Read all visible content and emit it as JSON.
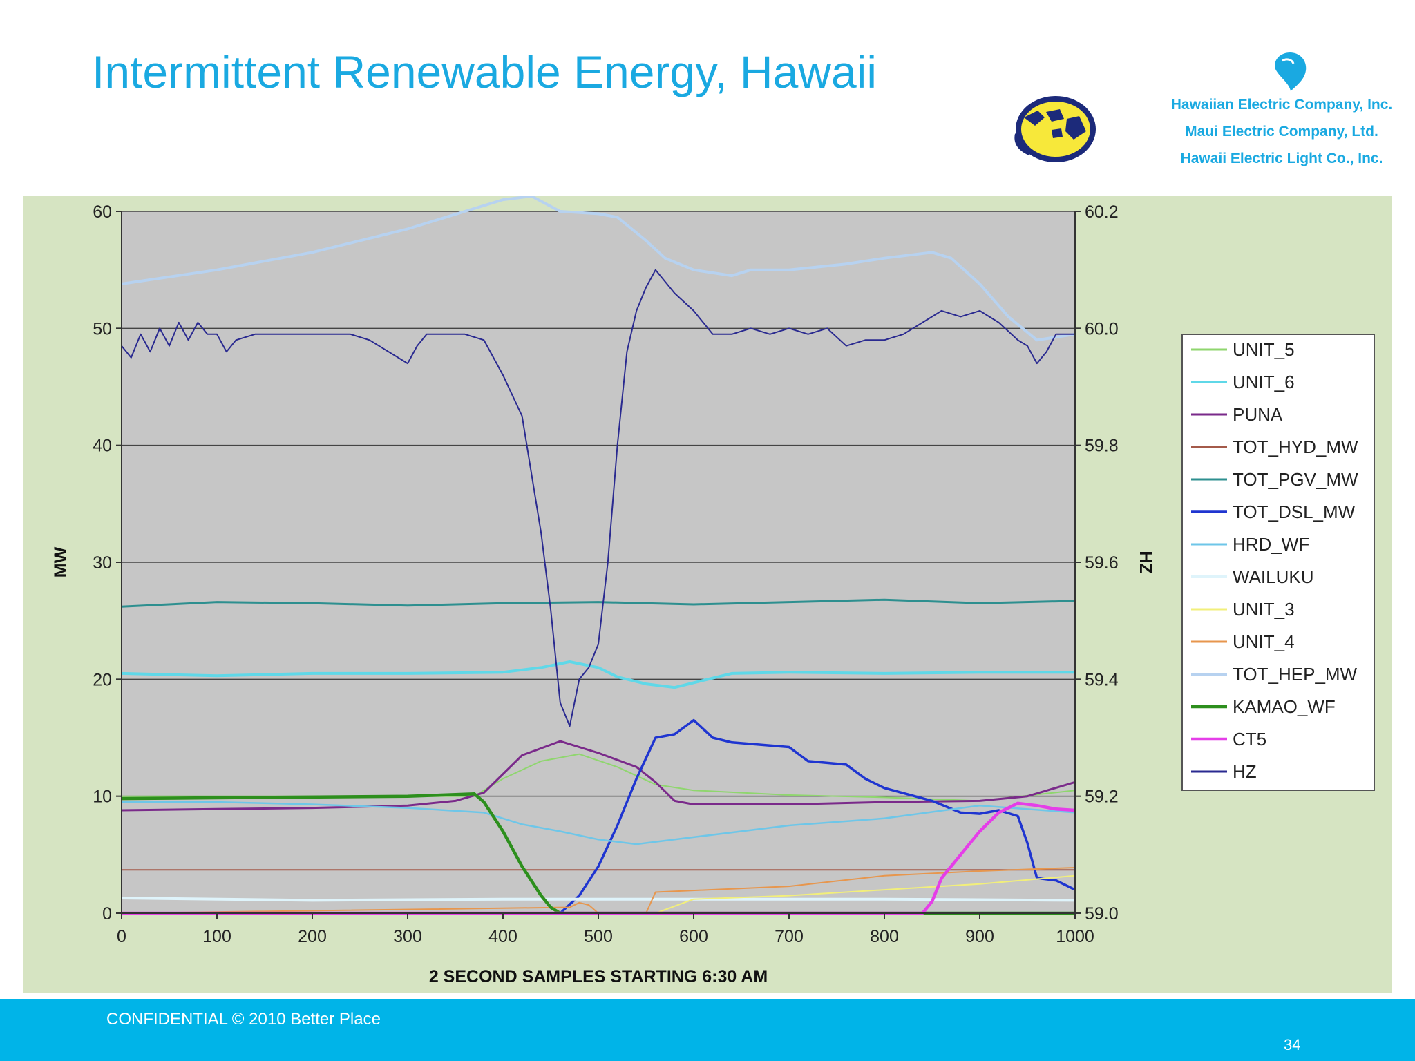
{
  "slide": {
    "title": "Intermittent Renewable Energy, Hawaii",
    "companies": [
      "Hawaiian Electric Company, Inc.",
      "Maui Electric Company, Ltd.",
      "Hawaii Electric Light Co., Inc."
    ],
    "footer": "CONFIDENTIAL © 2010 Better Place",
    "page_number": "34"
  },
  "chart_data": {
    "type": "line",
    "title": "",
    "xlabel": "2 SECOND SAMPLES STARTING 6:30 AM",
    "ylabel": "MW",
    "y2label": "HZ",
    "xlim": [
      0,
      1000
    ],
    "ylim": [
      0,
      60
    ],
    "y2lim": [
      59.0,
      60.2
    ],
    "x_ticks": [
      "0",
      "100",
      "200",
      "300",
      "400",
      "500",
      "600",
      "700",
      "800",
      "900",
      "1000"
    ],
    "y_ticks": [
      "0",
      "10",
      "20",
      "30",
      "40",
      "50",
      "60"
    ],
    "y2_ticks": [
      "59.0",
      "59.2",
      "59.4",
      "59.6",
      "59.8",
      "60.0",
      "60.2"
    ],
    "grid": "horizontal",
    "legend_position": "right",
    "series": [
      {
        "name": "UNIT_5",
        "color": "#8fd66e",
        "axis": "left",
        "x": [
          0,
          300,
          370,
          400,
          440,
          480,
          520,
          560,
          600,
          700,
          800,
          900,
          1000
        ],
        "y": [
          10,
          10,
          10,
          11.5,
          13,
          13.6,
          12.5,
          11,
          10.5,
          10.1,
          9.9,
          9.6,
          10.5
        ]
      },
      {
        "name": "UNIT_6",
        "color": "#5fd8e8",
        "axis": "left",
        "x": [
          0,
          100,
          200,
          300,
          400,
          440,
          470,
          500,
          520,
          550,
          580,
          610,
          640,
          700,
          800,
          900,
          1000
        ],
        "y": [
          20.5,
          20.3,
          20.5,
          20.5,
          20.6,
          21,
          21.5,
          21,
          20.2,
          19.6,
          19.3,
          19.9,
          20.5,
          20.6,
          20.5,
          20.6,
          20.6
        ]
      },
      {
        "name": "PUNA",
        "color": "#7a2a8a",
        "axis": "left",
        "x": [
          0,
          100,
          200,
          300,
          350,
          380,
          420,
          460,
          500,
          540,
          560,
          580,
          600,
          700,
          800,
          900,
          950,
          1000
        ],
        "y": [
          8.8,
          8.9,
          9,
          9.2,
          9.6,
          10.3,
          13.5,
          14.7,
          13.7,
          12.5,
          11.2,
          9.6,
          9.3,
          9.3,
          9.5,
          9.6,
          10,
          11.2
        ]
      },
      {
        "name": "TOT_HYD_MW",
        "color": "#a45a4a",
        "axis": "left",
        "x": [
          0,
          1000
        ],
        "y": [
          3.7,
          3.7
        ]
      },
      {
        "name": "TOT_PGV_MW",
        "color": "#2d8f8f",
        "axis": "left",
        "x": [
          0,
          100,
          200,
          300,
          400,
          500,
          600,
          700,
          800,
          900,
          1000
        ],
        "y": [
          26.2,
          26.6,
          26.5,
          26.3,
          26.5,
          26.6,
          26.4,
          26.6,
          26.8,
          26.5,
          26.7
        ]
      },
      {
        "name": "TOT_DSL_MW",
        "color": "#1f35d0",
        "axis": "left",
        "x": [
          0,
          460,
          480,
          500,
          520,
          540,
          560,
          580,
          600,
          620,
          640,
          700,
          720,
          760,
          780,
          800,
          850,
          880,
          900,
          920,
          940,
          950,
          960,
          980,
          1000
        ],
        "y": [
          0,
          0,
          1.5,
          4,
          7.5,
          11.5,
          15,
          15.3,
          16.5,
          15,
          14.6,
          14.2,
          13,
          12.7,
          11.5,
          10.7,
          9.6,
          8.6,
          8.5,
          8.8,
          8.3,
          6,
          3,
          2.8,
          2
        ]
      },
      {
        "name": "HRD_WF",
        "color": "#6ec6e8",
        "axis": "left",
        "x": [
          0,
          100,
          200,
          300,
          380,
          420,
          460,
          500,
          540,
          600,
          700,
          800,
          900,
          1000
        ],
        "y": [
          9.5,
          9.5,
          9.3,
          9,
          8.6,
          7.6,
          7,
          6.3,
          5.9,
          6.5,
          7.5,
          8.1,
          9.2,
          8.6
        ]
      },
      {
        "name": "WAILUKU",
        "color": "#dff4fb",
        "axis": "left",
        "x": [
          0,
          200,
          400,
          600,
          800,
          1000
        ],
        "y": [
          1.3,
          1.1,
          1.2,
          1.2,
          1.2,
          1.1
        ]
      },
      {
        "name": "UNIT_3",
        "color": "#f2ef7a",
        "axis": "left",
        "x": [
          0,
          560,
          600,
          700,
          800,
          900,
          1000
        ],
        "y": [
          0,
          0,
          1.2,
          1.5,
          2,
          2.5,
          3.2
        ]
      },
      {
        "name": "UNIT_4",
        "color": "#e7964d",
        "axis": "left",
        "x": [
          0,
          470,
          480,
          490,
          500,
          550,
          560,
          700,
          800,
          900,
          1000
        ],
        "y": [
          0,
          0.5,
          0.9,
          0.7,
          0,
          0,
          1.8,
          2.3,
          3.2,
          3.6,
          3.9
        ]
      },
      {
        "name": "TOT_HEP_MW",
        "color": "#b7d2f0",
        "axis": "left",
        "x": [
          0,
          100,
          200,
          300,
          360,
          400,
          430,
          460,
          500,
          520,
          550,
          570,
          600,
          640,
          660,
          700,
          760,
          800,
          850,
          870,
          900,
          930,
          960,
          1000
        ],
        "y": [
          53.8,
          55,
          56.5,
          58.5,
          60,
          61,
          61.3,
          60,
          59.8,
          59.5,
          57.5,
          56,
          55,
          54.5,
          55,
          55,
          55.5,
          56,
          56.5,
          56,
          53.8,
          51,
          49,
          49.5
        ]
      },
      {
        "name": "KAMAO_WF",
        "color": "#2d8f1d",
        "axis": "left",
        "x": [
          0,
          300,
          370,
          380,
          400,
          420,
          440,
          450,
          460,
          1000
        ],
        "y": [
          9.8,
          10,
          10.2,
          9.5,
          7,
          4,
          1.5,
          0.5,
          0,
          0
        ]
      },
      {
        "name": "CT5",
        "color": "#e53ee8",
        "axis": "left",
        "x": [
          0,
          840,
          850,
          860,
          880,
          900,
          920,
          940,
          960,
          980,
          1000
        ],
        "y": [
          0,
          0,
          1,
          3,
          5,
          7,
          8.6,
          9.4,
          9.2,
          8.9,
          8.8
        ]
      },
      {
        "name": "HZ",
        "color": "#2a2a90",
        "axis": "right",
        "x": [
          0,
          10,
          20,
          30,
          40,
          50,
          60,
          70,
          80,
          90,
          100,
          110,
          120,
          140,
          160,
          200,
          240,
          260,
          280,
          300,
          310,
          320,
          340,
          360,
          380,
          400,
          420,
          440,
          450,
          460,
          470,
          480,
          490,
          500,
          510,
          520,
          530,
          540,
          550,
          560,
          570,
          580,
          600,
          620,
          640,
          660,
          680,
          700,
          720,
          740,
          760,
          780,
          800,
          820,
          840,
          860,
          880,
          900,
          920,
          940,
          950,
          960,
          970,
          980,
          1000
        ],
        "y": [
          59.97,
          59.95,
          59.99,
          59.96,
          60.0,
          59.97,
          60.01,
          59.98,
          60.01,
          59.99,
          59.99,
          59.96,
          59.98,
          59.99,
          59.99,
          59.99,
          59.99,
          59.98,
          59.96,
          59.94,
          59.97,
          59.99,
          59.99,
          59.99,
          59.98,
          59.92,
          59.85,
          59.65,
          59.52,
          59.36,
          59.32,
          59.4,
          59.42,
          59.46,
          59.6,
          59.8,
          59.96,
          60.03,
          60.07,
          60.1,
          60.08,
          60.06,
          60.03,
          59.99,
          59.99,
          60.0,
          59.99,
          60.0,
          59.99,
          60.0,
          59.97,
          59.98,
          59.98,
          59.99,
          60.01,
          60.03,
          60.02,
          60.03,
          60.01,
          59.98,
          59.97,
          59.94,
          59.96,
          59.99,
          59.99
        ]
      }
    ]
  }
}
